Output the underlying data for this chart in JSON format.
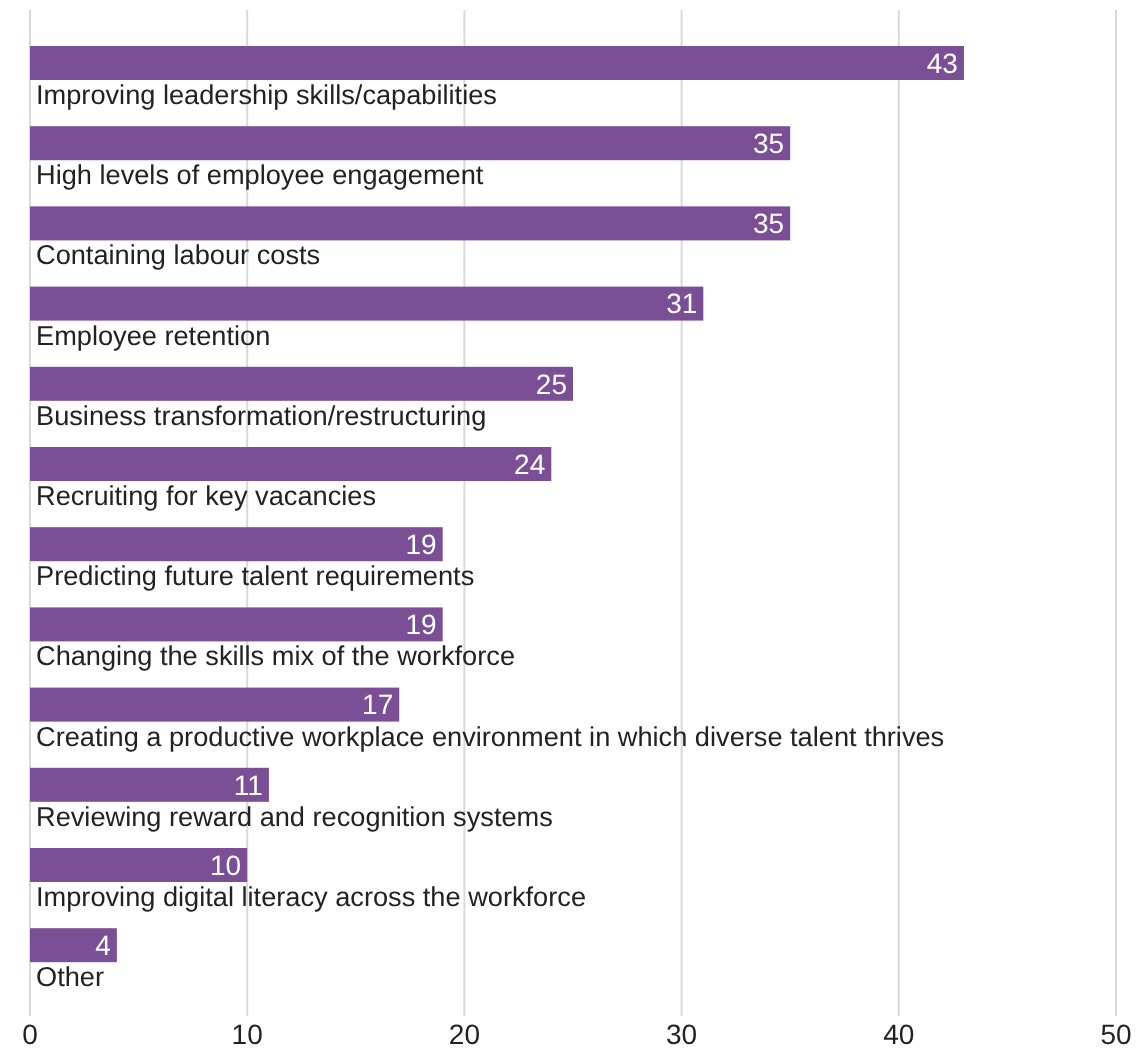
{
  "chart_data": {
    "type": "bar",
    "orientation": "horizontal",
    "categories": [
      "Improving leadership skills/capabilities",
      "High levels of employee engagement",
      "Containing labour costs",
      "Employee retention",
      "Business transformation/restructuring",
      "Recruiting for key vacancies",
      "Predicting future talent requirements",
      "Changing the skills mix of the workforce",
      "Creating a productive workplace environment in which diverse talent thrives",
      "Reviewing reward and recognition systems",
      "Improving digital literacy across the workforce",
      "Other"
    ],
    "values": [
      43,
      35,
      35,
      31,
      25,
      24,
      19,
      19,
      17,
      11,
      10,
      4
    ],
    "color": "#7b4f96",
    "xlim": [
      0,
      50
    ],
    "xticks": [
      0,
      10,
      20,
      30,
      40,
      50
    ],
    "grid": "x",
    "data_labels": true
  }
}
